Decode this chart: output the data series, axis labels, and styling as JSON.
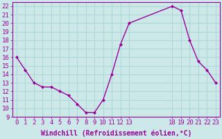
{
  "x": [
    0,
    1,
    2,
    3,
    4,
    5,
    6,
    7,
    8,
    9,
    10,
    11,
    12,
    13,
    18,
    19,
    20,
    21,
    22,
    23
  ],
  "y": [
    16,
    14.5,
    13,
    12.5,
    12.5,
    12,
    11.5,
    10.5,
    9.5,
    9.5,
    11,
    14,
    17.5,
    20,
    22,
    21.5,
    18,
    15.5,
    14.5,
    13
  ],
  "line_color": "#990099",
  "marker": "D",
  "marker_size": 2.0,
  "bg_color": "#cce8e8",
  "grid_color": "#b0d8d8",
  "xlabel": "Windchill (Refroidissement éolien,°C)",
  "xlabel_color": "#990099",
  "tick_color": "#990099",
  "spine_color": "#990099",
  "xlim": [
    -0.5,
    23.5
  ],
  "ylim": [
    9,
    22.5
  ],
  "yticks": [
    9,
    10,
    11,
    12,
    13,
    14,
    15,
    16,
    17,
    18,
    19,
    20,
    21,
    22
  ],
  "xtick_positions": [
    0,
    1,
    2,
    3,
    4,
    5,
    6,
    7,
    8,
    9,
    10,
    11,
    12,
    13,
    18,
    19,
    20,
    21,
    22,
    23
  ],
  "xtick_labels": [
    "0",
    "1",
    "2",
    "3",
    "4",
    "5",
    "6",
    "7",
    "8",
    "9",
    "10",
    "11",
    "12",
    "13",
    "18",
    "19",
    "20",
    "21",
    "22",
    "23"
  ],
  "font_size": 6.5,
  "xlabel_fontsize": 7.0,
  "linewidth": 1.0
}
